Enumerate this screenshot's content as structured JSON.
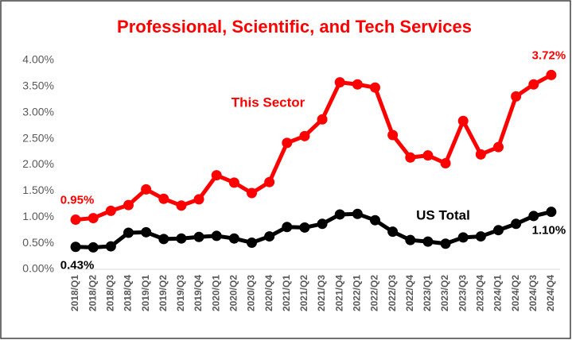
{
  "chart_data": {
    "type": "line",
    "title": "Professional, Scientific, and Tech Services",
    "categories": [
      "2018/Q1",
      "2018/Q2",
      "2018/Q3",
      "2018/Q4",
      "2019/Q1",
      "2019/Q2",
      "2019/Q3",
      "2019/Q4",
      "2020/Q1",
      "2020/Q2",
      "2020/Q3",
      "2020/Q4",
      "2021/Q1",
      "2021/Q2",
      "2021/Q3",
      "2021/Q4",
      "2022/Q1",
      "2022/Q2",
      "2022/Q3",
      "2022/Q4",
      "2023/Q1",
      "2023/Q2",
      "2023/Q3",
      "2023/Q4",
      "2024/Q1",
      "2024/Q2",
      "2024/Q3",
      "2024/Q4"
    ],
    "series": [
      {
        "name": "This Sector",
        "color": "#ff0000",
        "values": [
          0.95,
          0.98,
          1.12,
          1.23,
          1.53,
          1.35,
          1.22,
          1.34,
          1.8,
          1.66,
          1.46,
          1.67,
          2.42,
          2.55,
          2.87,
          3.58,
          3.54,
          3.48,
          2.57,
          2.14,
          2.18,
          2.03,
          2.84,
          2.2,
          2.34,
          3.31,
          3.54,
          3.72
        ],
        "value_labels": [
          "0.95%",
          null,
          null,
          null,
          null,
          null,
          null,
          null,
          null,
          null,
          null,
          null,
          null,
          null,
          null,
          null,
          null,
          null,
          null,
          null,
          null,
          null,
          null,
          null,
          null,
          null,
          null,
          "3.72%"
        ]
      },
      {
        "name": "US Total",
        "color": "#000000",
        "values": [
          0.43,
          0.42,
          0.44,
          0.7,
          0.71,
          0.58,
          0.59,
          0.62,
          0.64,
          0.59,
          0.51,
          0.63,
          0.81,
          0.8,
          0.87,
          1.05,
          1.06,
          0.94,
          0.72,
          0.56,
          0.53,
          0.49,
          0.61,
          0.63,
          0.75,
          0.87,
          1.02,
          1.1
        ],
        "value_labels": [
          "0.43%",
          null,
          null,
          null,
          null,
          null,
          null,
          null,
          null,
          null,
          null,
          null,
          null,
          null,
          null,
          null,
          null,
          null,
          null,
          null,
          null,
          null,
          null,
          null,
          null,
          null,
          null,
          "1.10%"
        ]
      }
    ],
    "ylim": [
      0,
      4
    ],
    "yticks": [
      {
        "value": 0,
        "label": "0.00%"
      },
      {
        "value": 0.5,
        "label": "0.50%"
      },
      {
        "value": 1,
        "label": "1.00%"
      },
      {
        "value": 1.5,
        "label": "1.50%"
      },
      {
        "value": 2,
        "label": "2.00%"
      },
      {
        "value": 2.5,
        "label": "2.50%"
      },
      {
        "value": 3,
        "label": "3.00%"
      },
      {
        "value": 3.5,
        "label": "3.50%"
      },
      {
        "value": 4,
        "label": "4.00%"
      }
    ],
    "grid": false
  }
}
